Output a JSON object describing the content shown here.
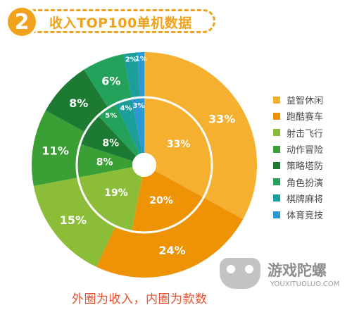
{
  "header": {
    "number": "2",
    "title": "收入TOP100单机数据"
  },
  "note": "外圈为收入，内圈为款数",
  "watermark": {
    "name": "游戏陀螺",
    "url": "YOUXITUOLUO.COM"
  },
  "colors": [
    "#f4b02e",
    "#ef9306",
    "#8cbd38",
    "#3a9f34",
    "#1d7a32",
    "#24a15a",
    "#1c9e9b",
    "#2b98d2"
  ],
  "chart_data": {
    "type": "pie",
    "title": "收入TOP100单机数据",
    "categories": [
      "益智休闲",
      "跑酷赛车",
      "射击飞行",
      "动作冒险",
      "策略塔防",
      "角色扮演",
      "棋牌麻将",
      "体育竞技"
    ],
    "series": [
      {
        "values": [
          33,
          24,
          15,
          11,
          8,
          6,
          2,
          1
        ]
      },
      {
        "values": [
          33,
          20,
          19,
          8,
          8,
          5,
          4,
          3
        ]
      }
    ],
    "legend_position": "right"
  }
}
